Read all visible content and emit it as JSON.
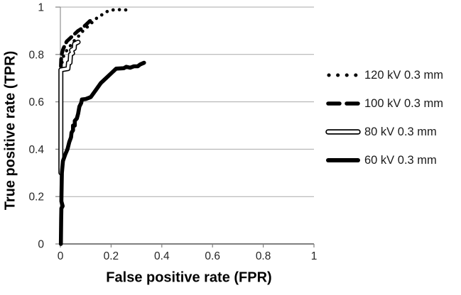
{
  "chart_data": {
    "type": "line",
    "title": "",
    "xlabel": "False positive rate (FPR)",
    "ylabel": "True positive rate (TPR)",
    "xlim": [
      0,
      1
    ],
    "ylim": [
      0,
      1
    ],
    "xticks": [
      0,
      0.2,
      0.4,
      0.6,
      0.8,
      1
    ],
    "yticks": [
      0,
      0.2,
      0.4,
      0.6,
      0.8,
      1
    ],
    "grid": "horizontal-only",
    "legend_position": "right-center",
    "colors": {
      "line": "#000000",
      "grid": "#a9a9a9",
      "axis": "#6e6e6e",
      "tick_text": "#262626"
    },
    "series": [
      {
        "name": "120 kV 0.3 mm",
        "style": "dotted",
        "points": [
          [
            0.004,
            0.74
          ],
          [
            0.005,
            0.755
          ],
          [
            0.007,
            0.77
          ],
          [
            0.01,
            0.785
          ],
          [
            0.015,
            0.8
          ],
          [
            0.022,
            0.812
          ],
          [
            0.03,
            0.825
          ],
          [
            0.042,
            0.84
          ],
          [
            0.055,
            0.858
          ],
          [
            0.07,
            0.875
          ],
          [
            0.085,
            0.895
          ],
          [
            0.1,
            0.91
          ],
          [
            0.115,
            0.925
          ],
          [
            0.13,
            0.94
          ],
          [
            0.145,
            0.955
          ],
          [
            0.16,
            0.965
          ],
          [
            0.175,
            0.975
          ],
          [
            0.19,
            0.985
          ],
          [
            0.22,
            0.99
          ],
          [
            0.245,
            0.988
          ],
          [
            0.27,
            0.988
          ]
        ]
      },
      {
        "name": "100 kV 0.3 mm",
        "style": "dashed",
        "points": [
          [
            0.002,
            0.75
          ],
          [
            0.003,
            0.78
          ],
          [
            0.005,
            0.8
          ],
          [
            0.01,
            0.82
          ],
          [
            0.016,
            0.835
          ],
          [
            0.025,
            0.855
          ],
          [
            0.04,
            0.87
          ],
          [
            0.055,
            0.885
          ],
          [
            0.07,
            0.9
          ],
          [
            0.085,
            0.91
          ],
          [
            0.1,
            0.925
          ],
          [
            0.115,
            0.94
          ],
          [
            0.13,
            0.95
          ]
        ]
      },
      {
        "name": "80 kV 0.3 mm",
        "style": "outlined",
        "points": [
          [
            0.002,
            0.3
          ],
          [
            0.002,
            0.735
          ],
          [
            0.03,
            0.74
          ],
          [
            0.032,
            0.765
          ],
          [
            0.038,
            0.765
          ],
          [
            0.04,
            0.8
          ],
          [
            0.048,
            0.805
          ],
          [
            0.044,
            0.818
          ],
          [
            0.055,
            0.825
          ],
          [
            0.056,
            0.845
          ],
          [
            0.07,
            0.852
          ]
        ]
      },
      {
        "name": "60 kV 0.3 mm",
        "style": "solid",
        "points": [
          [
            0.002,
            0
          ],
          [
            0.003,
            0.1
          ],
          [
            0.004,
            0.15
          ],
          [
            0.009,
            0.16
          ],
          [
            0.004,
            0.18
          ],
          [
            0.005,
            0.25
          ],
          [
            0.006,
            0.3
          ],
          [
            0.01,
            0.35
          ],
          [
            0.02,
            0.38
          ],
          [
            0.028,
            0.4
          ],
          [
            0.035,
            0.43
          ],
          [
            0.042,
            0.45
          ],
          [
            0.044,
            0.47
          ],
          [
            0.05,
            0.48
          ],
          [
            0.05,
            0.5
          ],
          [
            0.057,
            0.5
          ],
          [
            0.057,
            0.52
          ],
          [
            0.065,
            0.53
          ],
          [
            0.07,
            0.55
          ],
          [
            0.075,
            0.58
          ],
          [
            0.082,
            0.595
          ],
          [
            0.085,
            0.61
          ],
          [
            0.1,
            0.612
          ],
          [
            0.12,
            0.62
          ],
          [
            0.14,
            0.65
          ],
          [
            0.16,
            0.68
          ],
          [
            0.18,
            0.7
          ],
          [
            0.2,
            0.72
          ],
          [
            0.22,
            0.74
          ],
          [
            0.25,
            0.742
          ],
          [
            0.26,
            0.748
          ],
          [
            0.275,
            0.744
          ],
          [
            0.29,
            0.75
          ],
          [
            0.305,
            0.75
          ],
          [
            0.315,
            0.758
          ],
          [
            0.33,
            0.765
          ]
        ]
      }
    ]
  }
}
